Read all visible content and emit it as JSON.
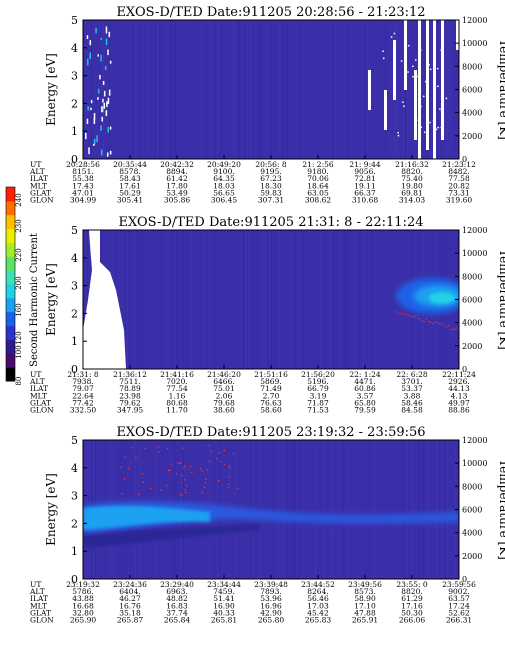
{
  "colorbar": {
    "label": "Second Harmonic Current",
    "ticks": [
      "240",
      "230",
      "220",
      "200",
      "160",
      "120",
      "100",
      "80"
    ],
    "colors": [
      "#000000",
      "#4a0d6b",
      "#2c1b8f",
      "#2c34c8",
      "#1b62e6",
      "#1ca0f0",
      "#22d0e6",
      "#3de0b4",
      "#5ee061",
      "#a6ec2a",
      "#e8f000",
      "#ffc000",
      "#ff7000",
      "#ff2000"
    ]
  },
  "chart_data": [
    {
      "type": "heatmap",
      "title": "EXOS-D/TED   Date:911205  20:28:56 - 21:23:12",
      "ylabel": "Energy [eV]",
      "ylabel_right": "Temperature [K]",
      "ylim": [
        0,
        5
      ],
      "ylim_right": [
        0,
        12000
      ],
      "yticks": [
        "0",
        "1",
        "2",
        "3",
        "4",
        "5"
      ],
      "yticks_right": [
        "0",
        "2000",
        "4000",
        "6000",
        "8000",
        "10000",
        "12000"
      ],
      "background": "#3a2fa8",
      "ephemeris": {
        "labels": [
          "UT",
          "ALT",
          "ILAT",
          "MLT",
          "GLAT",
          "GLON"
        ],
        "columns": [
          [
            "20:28:56",
            "8151.",
            "55.38",
            "17.43",
            "47.01",
            "304.99"
          ],
          [
            "20:35:44",
            "8578.",
            "58.43",
            "17.61",
            "50.29",
            "305.41"
          ],
          [
            "20:42:32",
            "8894.",
            "61.42",
            "17.80",
            "53.49",
            "305.86"
          ],
          [
            "20:49:20",
            "9100.",
            "64.35",
            "18.03",
            "56.65",
            "306.45"
          ],
          [
            "20:56: 8",
            "9195.",
            "67.23",
            "18.30",
            "59.83",
            "307.31"
          ],
          [
            "21: 2:56",
            "9180.",
            "70.06",
            "18.64",
            "63.05",
            "308.62"
          ],
          [
            "21: 9:44",
            "9056.",
            "72.81",
            "19.11",
            "66.37",
            "310.68"
          ],
          [
            "21:16:32",
            "8820.",
            "75.40",
            "19.80",
            "69.81",
            "314.03"
          ],
          [
            "21:23:12",
            "8482.",
            "77.58",
            "20.82",
            "73.31",
            "319.60"
          ]
        ]
      }
    },
    {
      "type": "heatmap",
      "title": "EXOS-D/TED   Date:911205  21:31: 8 - 22:11:24",
      "ylabel": "Energy [eV]",
      "ylabel_right": "Temperature [K]",
      "ylim": [
        0,
        5
      ],
      "ylim_right": [
        0,
        12000
      ],
      "yticks": [
        "0",
        "1",
        "2",
        "3",
        "4",
        "5"
      ],
      "yticks_right": [
        "0",
        "2000",
        "4000",
        "6000",
        "8000",
        "10000",
        "12000"
      ],
      "background": "#3a2fa8",
      "ephemeris": {
        "labels": [
          "UT",
          "ALT",
          "ILAT",
          "MLT",
          "GLAT",
          "GLON"
        ],
        "columns": [
          [
            "21:31: 8",
            "7938.",
            "79.07",
            "22.64",
            "77.42",
            "332.50"
          ],
          [
            "21:36:12",
            "7511.",
            "78.89",
            "23.98",
            "79.62",
            "347.95"
          ],
          [
            "21:41:16",
            "7020.",
            "77.54",
            "1.16",
            "80.68",
            "11.70"
          ],
          [
            "21:46:20",
            "6466.",
            "75.01",
            "2.06",
            "79.68",
            "38.60"
          ],
          [
            "21:51:16",
            "5869.",
            "71.49",
            "2.70",
            "76.63",
            "58.60"
          ],
          [
            "21:56:20",
            "5196.",
            "66.79",
            "3.19",
            "71.87",
            "71.53"
          ],
          [
            "22: 1:24",
            "4471.",
            "60.86",
            "3.57",
            "65.80",
            "79.59"
          ],
          [
            "22: 6:28",
            "3701.",
            "53.37",
            "3.88",
            "58.46",
            "84.58"
          ],
          [
            "22:11:24",
            "2926.",
            "44.13",
            "4.13",
            "49.97",
            "88.86"
          ]
        ]
      }
    },
    {
      "type": "heatmap",
      "title": "EXOS-D/TED   Date:911205  23:19:32 - 23:59:56",
      "ylabel": "Energy [eV]",
      "ylabel_right": "Temperature [K]",
      "ylim": [
        0,
        5
      ],
      "ylim_right": [
        0,
        12000
      ],
      "yticks": [
        "0",
        "1",
        "2",
        "3",
        "4",
        "5"
      ],
      "yticks_right": [
        "0",
        "2000",
        "4000",
        "6000",
        "8000",
        "10000",
        "12000"
      ],
      "background": "#3a2fa8",
      "ephemeris": {
        "labels": [
          "UT",
          "ALT",
          "ILAT",
          "MLT",
          "GLAT",
          "GLON"
        ],
        "columns": [
          [
            "23:19:32",
            "5786.",
            "43.88",
            "16.68",
            "32.80",
            "265.90"
          ],
          [
            "23:24:36",
            "6404.",
            "46.27",
            "16.76",
            "35.18",
            "265.87"
          ],
          [
            "23:29:40",
            "6963.",
            "48.82",
            "16.83",
            "37.74",
            "265.84"
          ],
          [
            "23:34:44",
            "7459.",
            "51.41",
            "16.90",
            "40.33",
            "265.81"
          ],
          [
            "23:39:48",
            "7893.",
            "53.96",
            "16.96",
            "42.90",
            "265.80"
          ],
          [
            "23:44:52",
            "8264.",
            "56.46",
            "17.03",
            "45.42",
            "265.83"
          ],
          [
            "23:49:56",
            "8573.",
            "58.90",
            "17.10",
            "47.88",
            "265.91"
          ],
          [
            "23:55: 0",
            "8820.",
            "61.29",
            "17.16",
            "50.30",
            "266.06"
          ],
          [
            "23:59:56",
            "9002.",
            "63.57",
            "17.24",
            "52.62",
            "266.31"
          ]
        ]
      }
    }
  ]
}
